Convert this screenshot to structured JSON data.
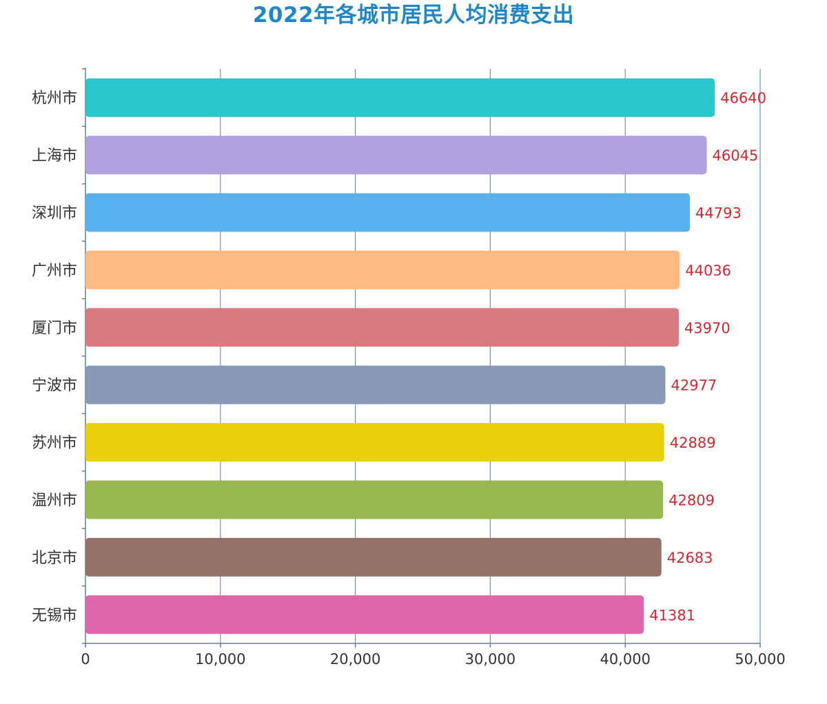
{
  "chart_data": {
    "type": "bar",
    "orientation": "horizontal",
    "title": "2022年各城市居民人均消费支出",
    "categories": [
      "杭州市",
      "上海市",
      "深圳市",
      "广州市",
      "厦门市",
      "宁波市",
      "苏州市",
      "温州市",
      "北京市",
      "无锡市"
    ],
    "values": [
      46640,
      46045,
      44793,
      44036,
      43970,
      42977,
      42889,
      42809,
      42683,
      41381
    ],
    "value_labels": [
      "46640",
      "46045",
      "44793",
      "44036",
      "43970",
      "42977",
      "42889",
      "42809",
      "42683",
      "41381"
    ],
    "bar_colors": [
      "#2ac6cb",
      "#b1a1de",
      "#58b0ee",
      "#ffb981",
      "#d87b7f",
      "#8898b8",
      "#e8d10c",
      "#97b851",
      "#957168",
      "#de67ac"
    ],
    "xlim": [
      0,
      50000
    ],
    "xticks": [
      0,
      10000,
      20000,
      30000,
      40000,
      50000
    ],
    "xtick_labels": [
      "0",
      "10,000",
      "20,000",
      "30,000",
      "40,000",
      "50,000"
    ],
    "xlabel": "",
    "ylabel": "",
    "grid": "vertical",
    "legend": "none",
    "colors": {
      "title": "#1f86c8",
      "value_label": "#d6262f",
      "axis": "#5b7fa6",
      "grid": "#5b7fa6",
      "text": "#333333"
    }
  }
}
